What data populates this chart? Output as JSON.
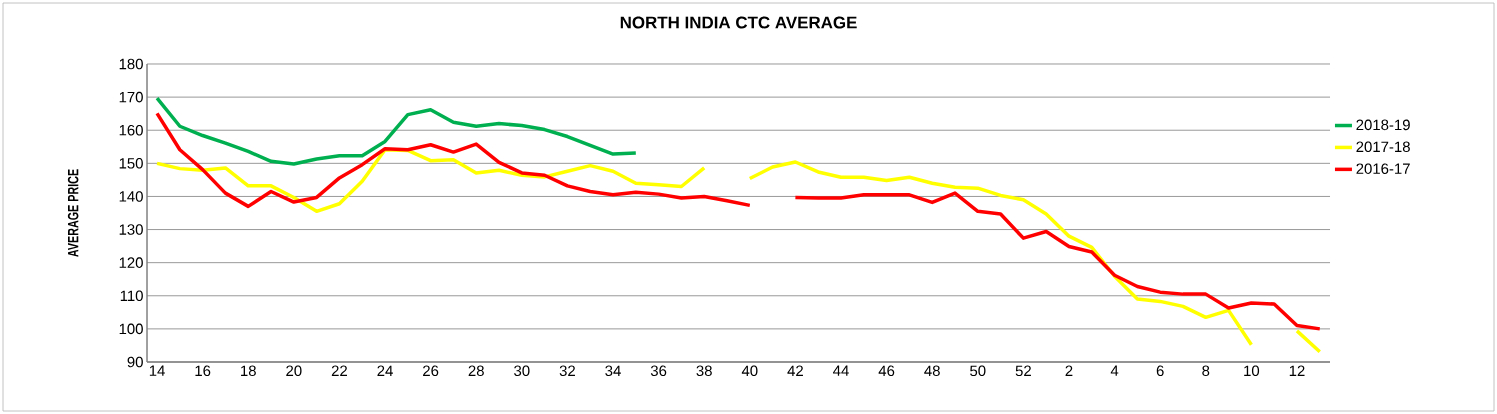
{
  "chart_data": {
    "type": "line",
    "title": "NORTH INDIA CTC AVERAGE",
    "ylabel": "AVERAGE PRICE",
    "categories": [
      "14",
      null,
      "16",
      null,
      "18",
      null,
      "20",
      null,
      "22",
      null,
      "24",
      null,
      "26",
      null,
      "28",
      null,
      "30",
      null,
      "32",
      null,
      "34",
      null,
      "36",
      null,
      "38",
      null,
      "40",
      null,
      "42",
      null,
      "44",
      null,
      "46",
      null,
      "48",
      null,
      "50",
      null,
      "52",
      null,
      "2",
      null,
      "4",
      null,
      "6",
      null,
      "8",
      null,
      "10",
      null,
      "12",
      null
    ],
    "series": [
      {
        "name": "2018-19",
        "color": "#00b050",
        "values": [
          169.7,
          161.2,
          158.4,
          156.1,
          153.6,
          150.6,
          149.8,
          151.3,
          152.3,
          152.3,
          156.6,
          164.7,
          166.2,
          162.4,
          161.2,
          162,
          161.4,
          160.2,
          158.1,
          155.4,
          152.8,
          153.1,
          null,
          null,
          null,
          null,
          null,
          null,
          null,
          null,
          null,
          null,
          null,
          null,
          null,
          null,
          null,
          null,
          null,
          null,
          null,
          null,
          null,
          null,
          null,
          null,
          null,
          null,
          null,
          null,
          null,
          null
        ]
      },
      {
        "name": "2017-18",
        "color": "#ffff00",
        "values": [
          150,
          148.4,
          147.9,
          148.6,
          143.2,
          143.2,
          139.7,
          135.5,
          137.8,
          144.6,
          154.1,
          153.9,
          150.8,
          151.1,
          147.1,
          147.9,
          146.4,
          145.9,
          147.6,
          149.3,
          147.6,
          144,
          143.5,
          143,
          148.6,
          null,
          145.4,
          148.9,
          150.4,
          147.4,
          145.8,
          145.8,
          144.8,
          145.8,
          144,
          142.8,
          142.5,
          140.3,
          139,
          134.7,
          128,
          124.6,
          115.9,
          109,
          108.3,
          106.8,
          103.5,
          105.6,
          95.2,
          null,
          99.4,
          93.1
        ]
      },
      {
        "name": "2016-17",
        "color": "#ff0000",
        "values": [
          165.1,
          154.1,
          148.1,
          141,
          137,
          141.5,
          138.3,
          139.7,
          145.6,
          149.6,
          154.4,
          154.1,
          155.6,
          153.4,
          155.8,
          150.3,
          147.1,
          146.4,
          143.2,
          141.5,
          140.5,
          141.3,
          140.7,
          139.5,
          140,
          138.7,
          137.3,
          null,
          139.7,
          139.5,
          139.5,
          140.5,
          140.5,
          140.5,
          138.2,
          141,
          135.5,
          134.7,
          127.4,
          129.4,
          124.9,
          123.2,
          116.2,
          112.8,
          111.1,
          110.5,
          110.5,
          106.3,
          107.8,
          107.5,
          101,
          100
        ]
      }
    ],
    "ylim": [
      90,
      180
    ],
    "yticks": [
      90,
      100,
      110,
      120,
      130,
      140,
      150,
      160,
      170,
      180
    ],
    "grid": "y",
    "legend": "right",
    "marker": "none",
    "line_style": "solid"
  }
}
